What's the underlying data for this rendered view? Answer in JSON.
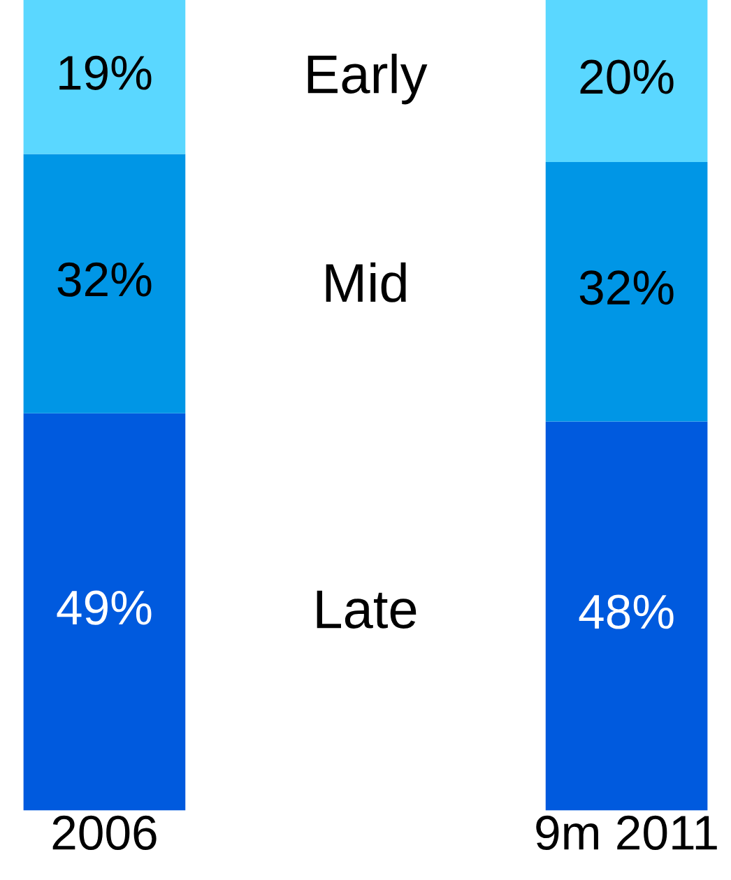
{
  "chart_data": {
    "type": "bar",
    "stacked": true,
    "categories": [
      "2006",
      "9m 2011"
    ],
    "series": [
      {
        "name": "Late",
        "color": "#005ade",
        "values": [
          49,
          48
        ],
        "value_labels": [
          "49%",
          "48%"
        ]
      },
      {
        "name": "Mid",
        "color": "#0096e6",
        "values": [
          32,
          32
        ],
        "value_labels": [
          "32%",
          "32%"
        ]
      },
      {
        "name": "Early",
        "color": "#5ad7ff",
        "values": [
          19,
          20
        ],
        "value_labels": [
          "19%",
          "20%"
        ]
      }
    ],
    "tick_labels": "x",
    "legend": false,
    "grid": false
  }
}
